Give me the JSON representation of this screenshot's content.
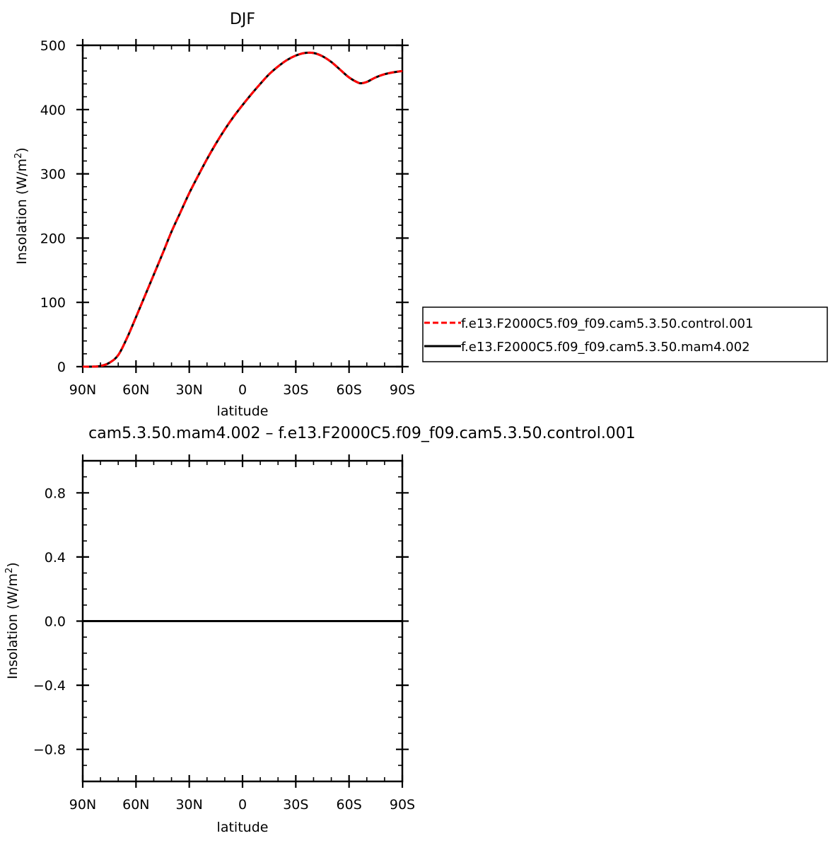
{
  "chart_data": [
    {
      "type": "line",
      "title": "DJF",
      "xlabel": "latitude",
      "ylabel": "Insolation  (W/m²)",
      "ylabel_parts": {
        "main": "Insolation  (W/m",
        "sup": "2",
        "close": ")"
      },
      "xlim": [
        -90,
        90
      ],
      "x_direction": "north-to-south",
      "ylim": [
        0,
        500
      ],
      "x_ticks": [
        -90,
        -60,
        -30,
        0,
        30,
        60,
        90
      ],
      "x_tick_labels": [
        "90N",
        "60N",
        "30N",
        "0",
        "30S",
        "60S",
        "90S"
      ],
      "y_ticks": [
        0,
        100,
        200,
        300,
        400,
        500
      ],
      "y_tick_labels": [
        "0",
        "100",
        "200",
        "300",
        "400",
        "500"
      ],
      "legend_position": "right, outside plot",
      "x": [
        -90,
        -85,
        -80,
        -75,
        -70,
        -65,
        -60,
        -55,
        -50,
        -45,
        -40,
        -35,
        -30,
        -25,
        -20,
        -15,
        -10,
        -5,
        0,
        5,
        10,
        15,
        20,
        25,
        30,
        35,
        40,
        45,
        50,
        55,
        60,
        65,
        67,
        70,
        75,
        80,
        85,
        90
      ],
      "series": [
        {
          "name": "f.e13.F2000C5.f09_f09.cam5.3.50.control.001",
          "color": "#ff0000",
          "dash": "dashed",
          "values": [
            0,
            0,
            1,
            6,
            18,
            45,
            77,
            110,
            143,
            176,
            210,
            240,
            270,
            297,
            323,
            347,
            369,
            389,
            407,
            424,
            440,
            455,
            467,
            477,
            484,
            488,
            488,
            483,
            474,
            462,
            450,
            442,
            441,
            443,
            450,
            455,
            458,
            460
          ]
        },
        {
          "name": "f.e13.F2000C5.f09_f09.cam5.3.50.mam4.002",
          "color": "#000000",
          "dash": "solid",
          "values": [
            0,
            0,
            1,
            6,
            18,
            45,
            77,
            110,
            143,
            176,
            210,
            240,
            270,
            297,
            323,
            347,
            369,
            389,
            407,
            424,
            440,
            455,
            467,
            477,
            484,
            488,
            488,
            483,
            474,
            462,
            450,
            442,
            441,
            443,
            450,
            455,
            458,
            460
          ]
        }
      ]
    },
    {
      "type": "line",
      "title": "cam5.3.50.mam4.002 – f.e13.F2000C5.f09_f09.cam5.3.50.control.001",
      "xlabel": "latitude",
      "ylabel": "Insolation  (W/m²)",
      "ylabel_parts": {
        "main": "Insolation  (W/m",
        "sup": "2",
        "close": ")"
      },
      "xlim": [
        -90,
        90
      ],
      "x_direction": "north-to-south",
      "ylim": [
        -1,
        1
      ],
      "x_ticks": [
        -90,
        -60,
        -30,
        0,
        30,
        60,
        90
      ],
      "x_tick_labels": [
        "90N",
        "60N",
        "30N",
        "0",
        "30S",
        "60S",
        "90S"
      ],
      "y_ticks": [
        -0.8,
        -0.4,
        0.0,
        0.4,
        0.8
      ],
      "y_tick_labels": [
        "−0.8",
        "−0.4",
        "0.0",
        "0.4",
        "0.8"
      ],
      "x": [
        -90,
        90
      ],
      "series": [
        {
          "color": "#000000",
          "dash": "solid",
          "values": [
            0,
            0
          ]
        }
      ]
    }
  ]
}
